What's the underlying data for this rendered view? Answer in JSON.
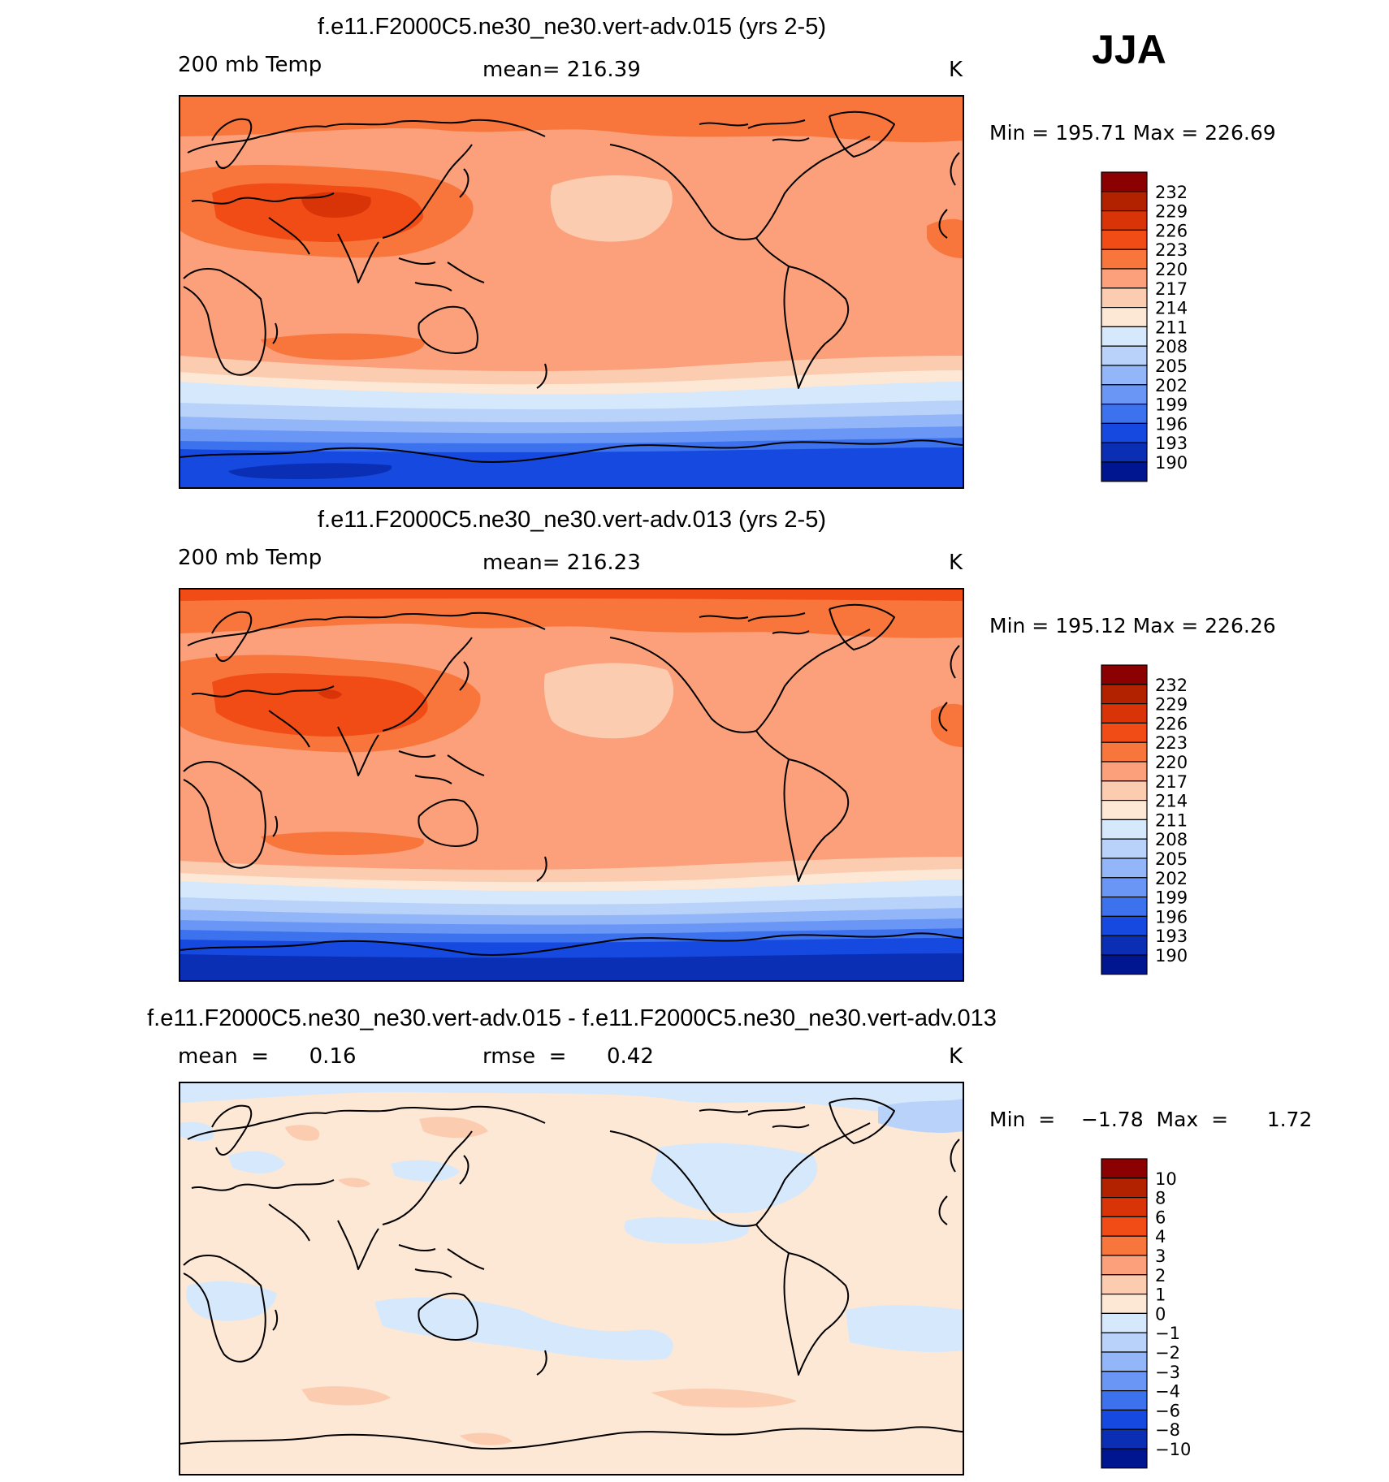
{
  "season": "JJA",
  "panels": [
    {
      "id": "case1",
      "title": "f.e11.F2000C5.ne30_ne30.vert-adv.015 (yrs 2-5)",
      "left_label": "200 mb Temp",
      "center_label": "mean=  216.39",
      "right_label": "K",
      "minmax_label": "Min  =  195.71  Max  =  226.69",
      "colorbar": {
        "labels": [
          "232",
          "229",
          "226",
          "223",
          "220",
          "217",
          "214",
          "211",
          "208",
          "205",
          "202",
          "199",
          "196",
          "193",
          "190"
        ],
        "colors": [
          "#8b0000",
          "#b22200",
          "#d83408",
          "#f14b16",
          "#f8763b",
          "#fba07a",
          "#fcccb0",
          "#fde8d6",
          "#d6e8fb",
          "#b8d2fa",
          "#93b6f8",
          "#6a97f5",
          "#3d72ee",
          "#1549df",
          "#0a2fb5",
          "#001590"
        ]
      }
    },
    {
      "id": "case2",
      "title": "f.e11.F2000C5.ne30_ne30.vert-adv.013 (yrs 2-5)",
      "left_label": "200 mb Temp",
      "center_label": "mean=  216.23",
      "right_label": "K",
      "minmax_label": "Min  =  195.12  Max  =  226.26",
      "colorbar": {
        "labels": [
          "232",
          "229",
          "226",
          "223",
          "220",
          "217",
          "214",
          "211",
          "208",
          "205",
          "202",
          "199",
          "196",
          "193",
          "190"
        ],
        "colors": [
          "#8b0000",
          "#b22200",
          "#d83408",
          "#f14b16",
          "#f8763b",
          "#fba07a",
          "#fcccb0",
          "#fde8d6",
          "#d6e8fb",
          "#b8d2fa",
          "#93b6f8",
          "#6a97f5",
          "#3d72ee",
          "#1549df",
          "#0a2fb5",
          "#001590"
        ]
      }
    },
    {
      "id": "diff",
      "title": "f.e11.F2000C5.ne30_ne30.vert-adv.015 - f.e11.F2000C5.ne30_ne30.vert-adv.013",
      "left_label": "mean  =      0.16",
      "center_label": "rmse  =      0.42",
      "right_label": "K",
      "minmax_label": "Min  =    −1.78  Max  =      1.72",
      "colorbar": {
        "labels": [
          "10",
          "8",
          "6",
          "4",
          "3",
          "2",
          "1",
          "0",
          "−1",
          "−2",
          "−3",
          "−4",
          "−6",
          "−8",
          "−10"
        ],
        "colors": [
          "#8b0000",
          "#b22200",
          "#d83408",
          "#f14b16",
          "#f8763b",
          "#fba07a",
          "#fcccb0",
          "#fde8d6",
          "#d6e8fb",
          "#b8d2fa",
          "#93b6f8",
          "#6a97f5",
          "#3d72ee",
          "#1549df",
          "#0a2fb5",
          "#001590"
        ]
      }
    }
  ]
}
